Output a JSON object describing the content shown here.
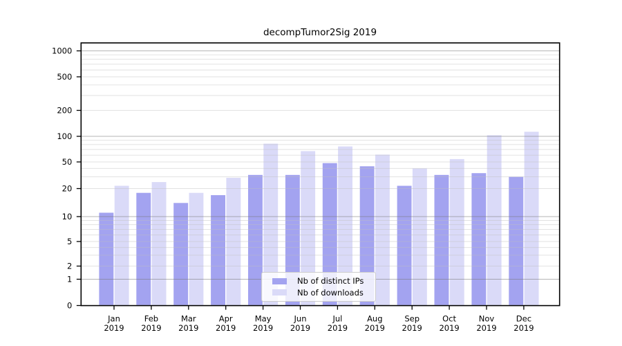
{
  "title": "decompTumor2Sig 2019",
  "chart_data": {
    "type": "bar",
    "title": "decompTumor2Sig 2019",
    "categories": [
      "Jan",
      "Feb",
      "Mar",
      "Apr",
      "May",
      "Jun",
      "Jul",
      "Aug",
      "Sep",
      "Oct",
      "Nov",
      "Dec"
    ],
    "year": "2019",
    "series": [
      {
        "name": "Nb of distinct IPs",
        "color": "#a3a3f0",
        "values": [
          11,
          18,
          14,
          17,
          32,
          32,
          48,
          43,
          22,
          32,
          34,
          30
        ]
      },
      {
        "name": "Nb of downloads",
        "color": "#dadaf8",
        "values": [
          22,
          25,
          18,
          29,
          82,
          67,
          76,
          61,
          40,
          54,
          103,
          113
        ]
      }
    ],
    "yticks": [
      0,
      1,
      2,
      5,
      10,
      20,
      50,
      100,
      200,
      500,
      1000
    ],
    "ylim": [
      0,
      1200
    ],
    "yscale": "log-like with 0 baseline",
    "grid": true,
    "legend_position": "lower center"
  },
  "legend": {
    "items": [
      {
        "label": "Nb of distinct IPs",
        "color": "#a3a3f0"
      },
      {
        "label": "Nb of downloads",
        "color": "#dadaf8"
      }
    ]
  }
}
